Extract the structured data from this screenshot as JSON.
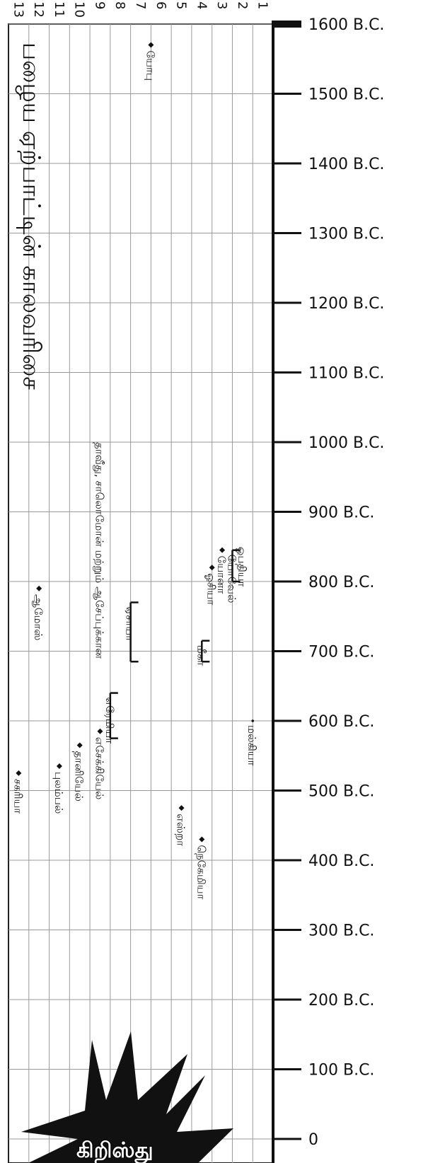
{
  "title": "பழைய ஏற்பாட்டின் காலவரிசை",
  "burst_label": "கிறிஸ்து",
  "column_numbers": [
    "1",
    "2",
    "3",
    "4",
    "5",
    "6",
    "7",
    "8",
    "9",
    "10",
    "11",
    "12",
    "13"
  ],
  "chart_data": {
    "type": "timeline",
    "y_axis": {
      "range": [
        0,
        1600
      ],
      "tick_step": 100,
      "tick_labels": [
        "1600 B.C.",
        "1500 B.C.",
        "1400 B.C.",
        "1300 B.C.",
        "1200 B.C.",
        "1100 B.C.",
        "1000 B.C.",
        "900 B.C.",
        "800 B.C.",
        "700 B.C.",
        "600 B.C.",
        "500 B.C.",
        "400 B.C.",
        "300 B.C.",
        "200 B.C.",
        "100 B.C.",
        "0"
      ]
    },
    "events": [
      {
        "id": "job",
        "label": "யோபு",
        "column": 6,
        "year": 1570,
        "kind": "point"
      },
      {
        "id": "david",
        "label": "தாவீது, சாலொமோன் மற்றும் ஆசேப்புக்கான",
        "column": 8.5,
        "year": 1000,
        "kind": "label"
      },
      {
        "id": "obadiah",
        "label": "ஒபதியா",
        "column": 1.5,
        "year": 850,
        "kind": "label"
      },
      {
        "id": "joel",
        "label": "யோவேல்",
        "column": 2,
        "start": 845,
        "end": 800,
        "kind": "range"
      },
      {
        "id": "jonah",
        "label": "யோனா",
        "column": 2.5,
        "year": 845,
        "kind": "point"
      },
      {
        "id": "hosea",
        "label": "ஓசியா",
        "column": 3,
        "year": 820,
        "kind": "point"
      },
      {
        "id": "amos",
        "label": "ஆமோஸ்",
        "column": 11.5,
        "year": 790,
        "kind": "point"
      },
      {
        "id": "isaiah",
        "label": "ஏசாயா",
        "column": 7,
        "start": 770,
        "end": 685,
        "kind": "range"
      },
      {
        "id": "micah",
        "label": "மீகா",
        "column": 3.5,
        "start": 715,
        "end": 685,
        "kind": "range"
      },
      {
        "id": "jeremiah",
        "label": "எரேமியா",
        "column": 8,
        "start": 640,
        "end": 575,
        "kind": "range"
      },
      {
        "id": "ezekiel",
        "label": "எசேக்கியேல்",
        "column": 8.5,
        "year": 585,
        "kind": "point"
      },
      {
        "id": "daniel",
        "label": "தானியேல்",
        "column": 9.5,
        "year": 565,
        "kind": "point"
      },
      {
        "id": "lamentations",
        "label": "புலம்பல்",
        "column": 10.5,
        "year": 535,
        "kind": "point"
      },
      {
        "id": "zechariah",
        "label": "சகரியா",
        "column": 12.5,
        "year": 525,
        "kind": "point"
      },
      {
        "id": "ezra",
        "label": "எஸ்றா",
        "column": 4.5,
        "year": 475,
        "kind": "point"
      },
      {
        "id": "nehemiah",
        "label": "நெகேமியா",
        "column": 3.5,
        "year": 430,
        "kind": "point"
      },
      {
        "id": "malachi",
        "label": "மல்கியா",
        "column": 1,
        "year": 600,
        "kind": "note"
      }
    ]
  }
}
